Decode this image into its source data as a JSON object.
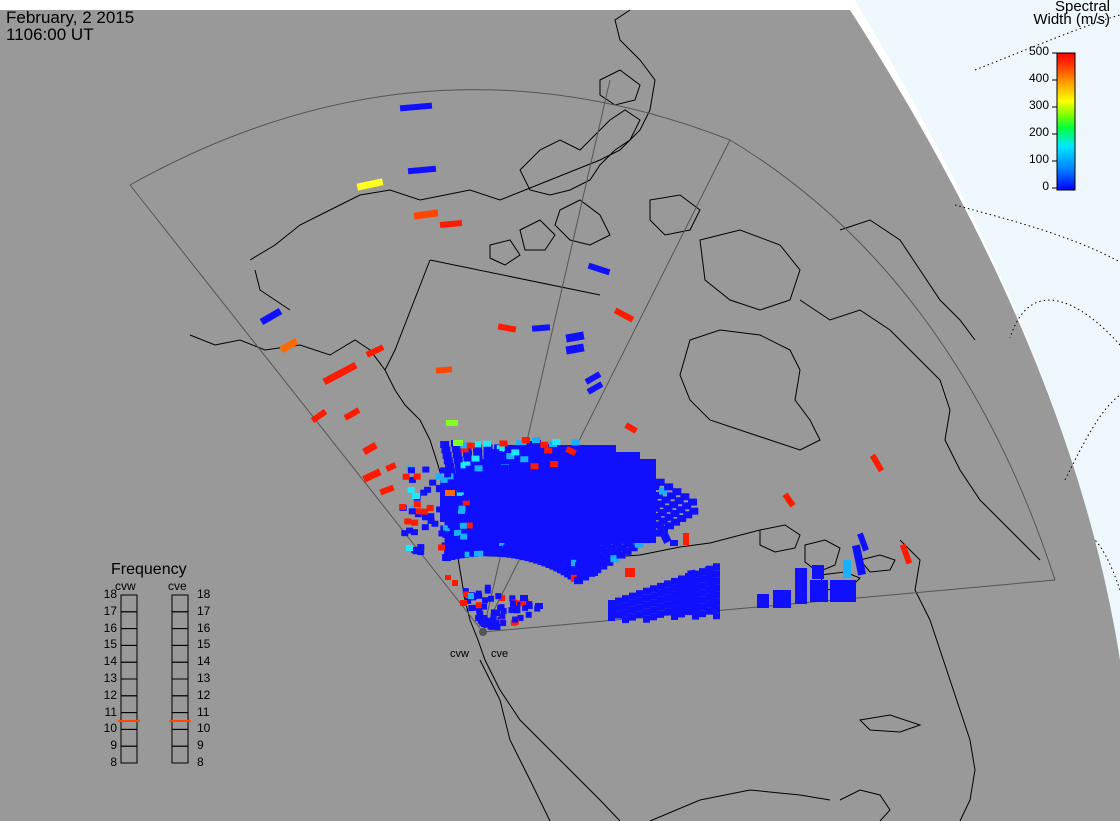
{
  "header": {
    "date": "February, 2 2015",
    "time": "1106:00 UT"
  },
  "colorbar": {
    "title_line1": "Spectral",
    "title_line2": "Width (m/s)",
    "ticks": [
      "500",
      "400",
      "300",
      "200",
      "100",
      "0"
    ],
    "range": [
      0,
      500
    ],
    "stops": [
      "#0000ff",
      "#0080ff",
      "#00e0ff",
      "#00ff40",
      "#80ff00",
      "#ffff00",
      "#ffa000",
      "#ff4000",
      "#ff0000"
    ]
  },
  "radar": {
    "sites": [
      {
        "id": "cvw",
        "label": "cvw"
      },
      {
        "id": "cve",
        "label": "cve"
      }
    ]
  },
  "frequency_panel": {
    "title": "Frequency",
    "radars": [
      "cvw",
      "cve"
    ],
    "scale": [
      "18",
      "17",
      "16",
      "15",
      "14",
      "13",
      "12",
      "11",
      "10",
      "9",
      "8"
    ],
    "cvw_value_mhz": 10.5,
    "cve_value_mhz": 10.5,
    "marker_color": "#ff4500"
  },
  "colors": {
    "background": "#999999",
    "space": "#eef7fc",
    "low": "#1010ff",
    "red": "#ff1a00"
  }
}
